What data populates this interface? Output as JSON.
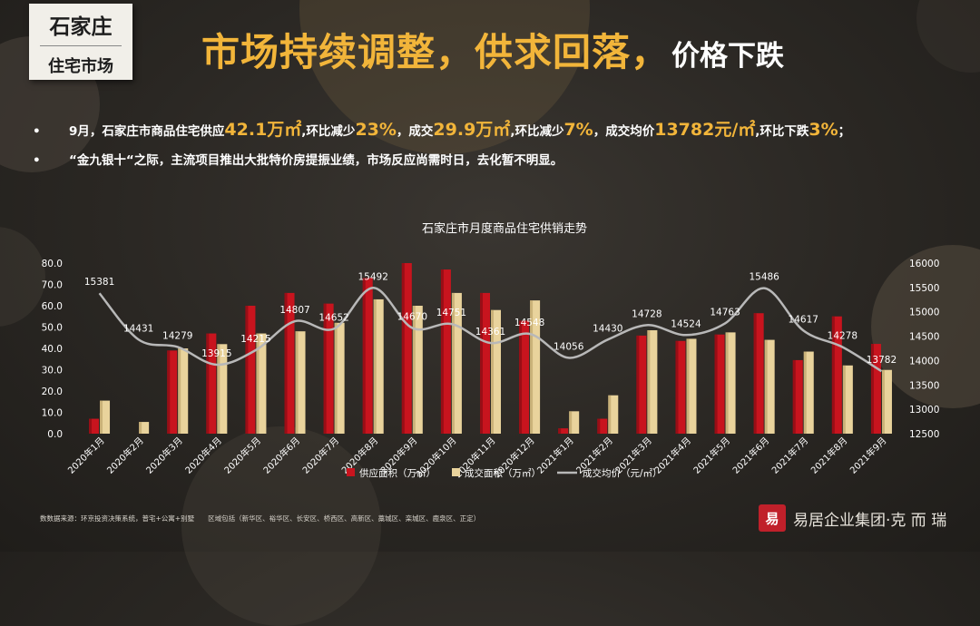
{
  "tag": {
    "city": "石家庄",
    "market": "住宅市场"
  },
  "headline": {
    "main": "市场持续调整，供求回落，",
    "tail": "价格下跌"
  },
  "bullets": {
    "dot": "•",
    "b1": {
      "t1": "9月，石家庄市商品住宅供应",
      "v1": "42.1万㎡",
      "t2": ",环比减少",
      "v2": "23%",
      "t3": "，成交",
      "v3": "29.9万㎡",
      "t4": ",环比减少",
      "v4": "7%",
      "t5": "，成交均价",
      "v5": "13782元/㎡",
      "t6": ",环比下跌",
      "v6": "3%",
      "t7": "；"
    },
    "b2": "“金九银十“之际，主流项目推出大批特价房提振业绩，市场反应尚需时日，去化暂不明显。"
  },
  "colors": {
    "supply": "#c8141e",
    "deal": "#e9d39c",
    "price_line": "#b8b8b8",
    "accent": "#f2b53a"
  },
  "chart_data": {
    "type": "bar",
    "title": "石家庄市月度商品住宅供销走势",
    "categories": [
      "2020年1月",
      "2020年2月",
      "2020年3月",
      "2020年4月",
      "2020年5月",
      "2020年6月",
      "2020年7月",
      "2020年8月",
      "2020年9月",
      "2020年10月",
      "2020年11月",
      "2020年12月",
      "2021年1月",
      "2021年2月",
      "2021年3月",
      "2021年4月",
      "2021年5月",
      "2021年6月",
      "2021年7月",
      "2021年8月",
      "2021年9月"
    ],
    "series": [
      {
        "name": "供应面积（万㎡）",
        "type": "bar",
        "axis": "left",
        "values": [
          7.0,
          0,
          39.0,
          47.0,
          60.0,
          66.0,
          61.0,
          73.0,
          80.0,
          77.0,
          66.0,
          53.0,
          2.5,
          7.0,
          46.0,
          43.5,
          46.5,
          56.5,
          34.5,
          55.0,
          42.1
        ]
      },
      {
        "name": "成交面积（万㎡）",
        "type": "bar",
        "axis": "right",
        "values": [
          15.5,
          5.5,
          40.0,
          42.0,
          47.0,
          48.0,
          52.0,
          63.0,
          60.0,
          66.0,
          58.0,
          62.5,
          10.5,
          18.0,
          48.5,
          44.5,
          47.5,
          44.0,
          38.5,
          32.0,
          29.9
        ]
      },
      {
        "name": "成交均价（元/㎡）",
        "type": "line",
        "axis": "right",
        "values": [
          15381,
          14431,
          14279,
          13915,
          14215,
          14807,
          14652,
          15492,
          14670,
          14751,
          14361,
          14548,
          14056,
          14430,
          14728,
          14524,
          14763,
          15486,
          14617,
          14278,
          13782
        ]
      }
    ],
    "left_axis": {
      "min": 0,
      "max": 80,
      "ticks": [
        "0.0",
        "10.0",
        "20.0",
        "30.0",
        "40.0",
        "50.0",
        "60.0",
        "70.0",
        "80.0"
      ]
    },
    "right_axis": {
      "min": 12500,
      "max": 16000,
      "ticks": [
        "12500",
        "13000",
        "13500",
        "14000",
        "14500",
        "15000",
        "15500",
        "16000"
      ]
    },
    "legend_position": "bottom",
    "grid": false
  },
  "footer": {
    "source": "数数据来源：环京投资决策系统，普宅+公寓+别墅　　区域包括（新华区、裕华区、长安区、桥西区、高新区、藁城区、栾城区、鹿泉区、正定）",
    "seal": "易",
    "logo_text": "易居企业集团·克 而 瑞"
  }
}
